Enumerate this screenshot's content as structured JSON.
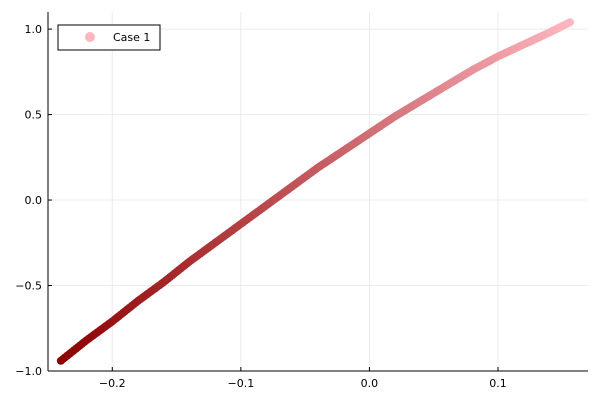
{
  "chart_data": {
    "type": "scatter",
    "title": "",
    "xlabel": "",
    "ylabel": "",
    "xlim": [
      -0.25,
      0.17
    ],
    "ylim": [
      -1.0,
      1.1
    ],
    "x_ticks": [
      -0.2,
      -0.1,
      0.0,
      0.1
    ],
    "x_tick_labels": [
      "−0.2",
      "−0.1",
      "0.0",
      "0.1"
    ],
    "y_ticks": [
      -1.0,
      -0.5,
      0.0,
      0.5,
      1.0
    ],
    "y_tick_labels": [
      "−1.0",
      "−0.5",
      "0.0",
      "0.5",
      "1.0"
    ],
    "grid": true,
    "legend_position": "top-left",
    "series": [
      {
        "name": "Case 1",
        "color_start": "#8b0000",
        "color_end": "#ffb6c1",
        "x": [
          -0.24,
          -0.22,
          -0.2,
          -0.18,
          -0.16,
          -0.14,
          -0.12,
          -0.1,
          -0.08,
          -0.06,
          -0.04,
          -0.02,
          0.0,
          0.02,
          0.04,
          0.06,
          0.08,
          0.1,
          0.12,
          0.14,
          0.156
        ],
        "y": [
          -0.94,
          -0.82,
          -0.71,
          -0.59,
          -0.48,
          -0.36,
          -0.25,
          -0.14,
          -0.03,
          0.08,
          0.19,
          0.29,
          0.39,
          0.49,
          0.58,
          0.67,
          0.76,
          0.84,
          0.91,
          0.98,
          1.04
        ]
      }
    ]
  },
  "legend": {
    "label": "Case 1",
    "marker_color": "#ffb6c1"
  },
  "colors": {
    "axis": "#000000",
    "grid": "#ebebeb",
    "background": "#ffffff"
  }
}
